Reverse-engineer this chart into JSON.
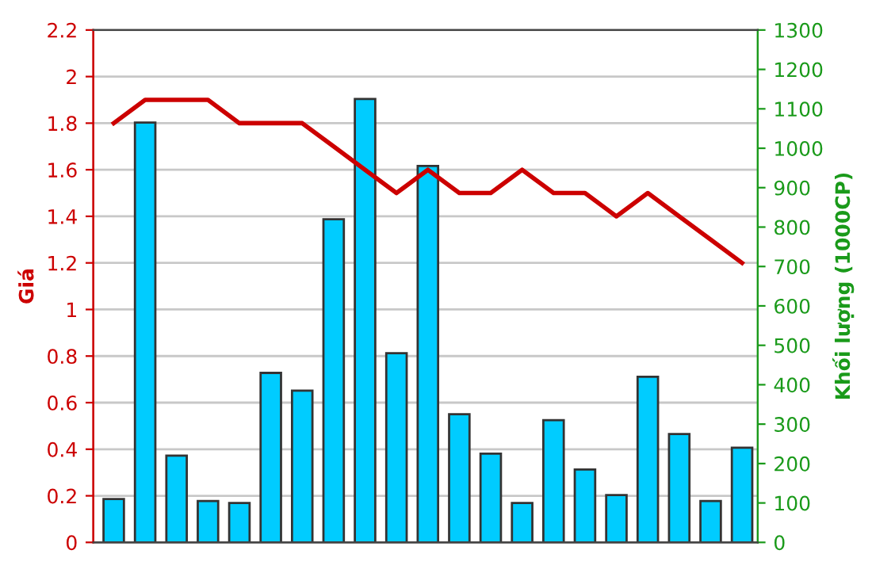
{
  "chart_data": {
    "type": "bar",
    "ylabel": "Giá",
    "y2label": "Khối lượng (1000CP)",
    "categories": [
      null,
      null,
      null,
      null,
      null,
      null,
      null,
      null,
      null,
      null,
      null,
      null,
      null,
      null,
      null,
      null,
      null,
      null,
      null,
      null,
      null
    ],
    "series": [
      {
        "axis": "y2",
        "color": "#00ccff",
        "values": [
          110,
          1065,
          220,
          105,
          100,
          430,
          385,
          820,
          1125,
          480,
          955,
          325,
          225,
          100,
          310,
          185,
          120,
          420,
          275,
          105,
          240
        ]
      },
      {
        "type": "line",
        "axis": "y",
        "color": "#cc0000",
        "values": [
          1.8,
          1.9,
          1.9,
          1.9,
          1.8,
          1.8,
          1.8,
          1.7,
          1.6,
          1.5,
          1.6,
          1.5,
          1.5,
          1.6,
          1.5,
          1.5,
          1.4,
          1.5,
          1.4,
          1.3,
          1.2
        ]
      }
    ],
    "ylim": [
      0,
      2.2
    ],
    "yticks": [
      0,
      0.2,
      0.4,
      0.6,
      0.8,
      1,
      1.2,
      1.4,
      1.6,
      1.8,
      2,
      2.2
    ],
    "y2lim": [
      0,
      1300
    ],
    "y2ticks": [
      0,
      100,
      200,
      300,
      400,
      500,
      600,
      700,
      800,
      900,
      1000,
      1100,
      1200,
      1300
    ],
    "grid": "y",
    "legend": false,
    "marker": "none",
    "line_style": "solid"
  }
}
